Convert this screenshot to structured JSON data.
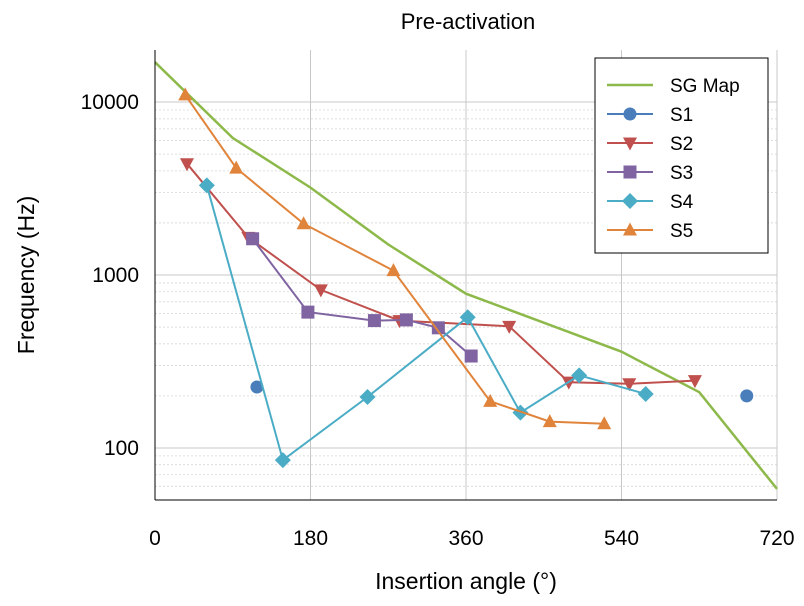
{
  "chart_data": {
    "type": "line",
    "title": "Pre-activation",
    "xlabel": "Insertion angle (°)",
    "ylabel": "Frequency (Hz)",
    "xlim": [
      0,
      720
    ],
    "ylim": [
      50,
      20000
    ],
    "yscale": "log",
    "x_ticks": [
      0,
      180,
      360,
      540,
      720
    ],
    "x_tick_labels": [
      "0",
      "180",
      "360",
      "540",
      "720"
    ],
    "y_ticks": [
      100,
      1000,
      10000
    ],
    "y_tick_labels": [
      "100",
      "1000",
      "10000"
    ],
    "grid": true,
    "legend_position": "top-right",
    "series": [
      {
        "name": "SG Map",
        "color": "#8db94a",
        "marker": "none",
        "points": [
          [
            0,
            17000
          ],
          [
            90,
            6200
          ],
          [
            180,
            3200
          ],
          [
            270,
            1500
          ],
          [
            360,
            780
          ],
          [
            450,
            530
          ],
          [
            540,
            360
          ],
          [
            630,
            210
          ],
          [
            720,
            58
          ]
        ]
      },
      {
        "name": "S1",
        "color": "#4a7ebb",
        "marker": "circle",
        "line": false,
        "points": [
          [
            118,
            225
          ],
          [
            685,
            200
          ]
        ]
      },
      {
        "name": "S2",
        "color": "#c0504d",
        "marker": "triangle-down",
        "points": [
          [
            37,
            4400
          ],
          [
            108,
            1650
          ],
          [
            192,
            820
          ],
          [
            283,
            545
          ],
          [
            410,
            505
          ],
          [
            479,
            240
          ],
          [
            549,
            235
          ],
          [
            625,
            245
          ]
        ]
      },
      {
        "name": "S3",
        "color": "#8064a2",
        "marker": "square",
        "points": [
          [
            113,
            1620
          ],
          [
            177,
            610
          ],
          [
            254,
            545
          ],
          [
            291,
            550
          ],
          [
            328,
            495
          ],
          [
            366,
            340
          ]
        ]
      },
      {
        "name": "S4",
        "color": "#4bacc6",
        "marker": "diamond",
        "points": [
          [
            60,
            3300
          ],
          [
            148,
            85
          ],
          [
            246,
            197
          ],
          [
            362,
            570
          ],
          [
            423,
            160
          ],
          [
            491,
            263
          ],
          [
            568,
            205
          ]
        ]
      },
      {
        "name": "S5",
        "color": "#e1843b",
        "marker": "triangle-up",
        "points": [
          [
            35,
            11000
          ],
          [
            94,
            4150
          ],
          [
            172,
            1980
          ],
          [
            276,
            1060
          ],
          [
            388,
            186
          ],
          [
            457,
            142
          ],
          [
            520,
            138
          ]
        ]
      }
    ]
  }
}
